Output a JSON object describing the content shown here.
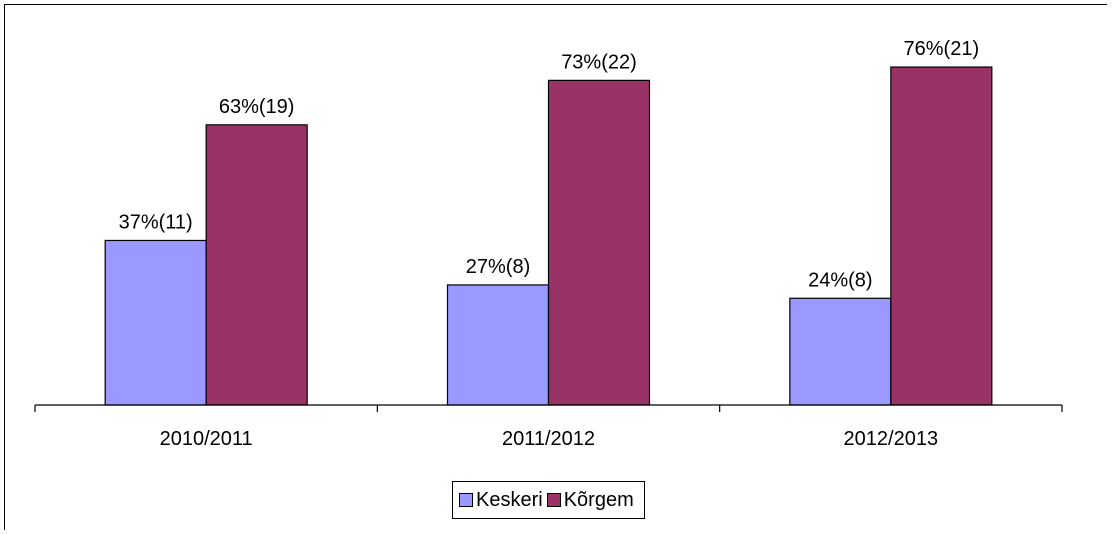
{
  "chart_data": {
    "type": "bar",
    "categories": [
      "2010/2011",
      "2011/2012",
      "2012/2013"
    ],
    "series": [
      {
        "name": "Keskeri",
        "color": "#9999ff",
        "values": [
          37,
          27,
          24
        ],
        "labels": [
          "37%(11)",
          "27%(8)",
          "24%(8)"
        ]
      },
      {
        "name": "Kõrgem",
        "color": "#993366",
        "values": [
          63,
          73,
          76
        ],
        "labels": [
          "63%(19)",
          "73%(22)",
          "76%(21)"
        ]
      }
    ],
    "ylim": [
      0,
      100
    ],
    "grid": false,
    "legend_position": "bottom"
  }
}
